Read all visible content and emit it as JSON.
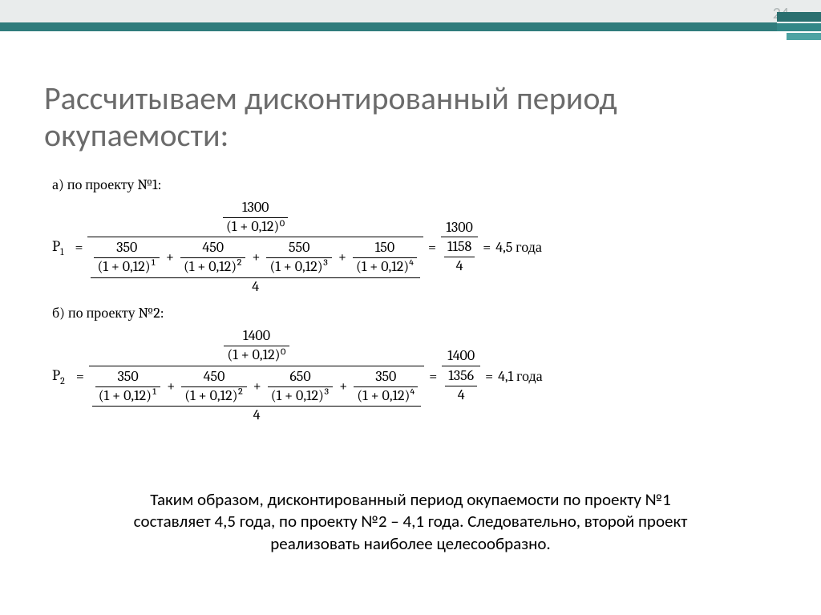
{
  "page_number": "24",
  "title": "Рассчитываем дисконтированный период окупаемости:",
  "project_a": {
    "label": "а) по проекту №1:",
    "var": "P",
    "sub": "1",
    "top_num": "1300",
    "top_den": "(1 + 0,12)⁰",
    "terms": [
      {
        "num": "350",
        "den": "(1 + 0,12)¹"
      },
      {
        "num": "450",
        "den": "(1 + 0,12)²"
      },
      {
        "num": "550",
        "den": "(1 + 0,12)³"
      },
      {
        "num": "150",
        "den": "(1 + 0,12)⁴"
      }
    ],
    "divisor": "4",
    "result_num": "1300",
    "result_den_top": "1158",
    "result_den_bot": "4",
    "result_val": "4,5 года"
  },
  "project_b": {
    "label": "б) по проекту №2:",
    "var": "P",
    "sub": "2",
    "top_num": "1400",
    "top_den": "(1 + 0,12)⁰",
    "terms": [
      {
        "num": "350",
        "den": "(1 + 0,12)¹"
      },
      {
        "num": "450",
        "den": "(1 + 0,12)²"
      },
      {
        "num": "650",
        "den": "(1 + 0,12)³"
      },
      {
        "num": "350",
        "den": "(1 + 0,12)⁴"
      }
    ],
    "divisor": "4",
    "result_num": "1400",
    "result_den_top": "1356",
    "result_den_bot": "4",
    "result_val": "4,1 года"
  },
  "conclusion": "Таким образом, дисконтированный период окупаемости по проекту №1 составляет 4,5 года, по проекту №2 – 4,1 года. Следовательно, второй проект реализовать наиболее целесообразно."
}
